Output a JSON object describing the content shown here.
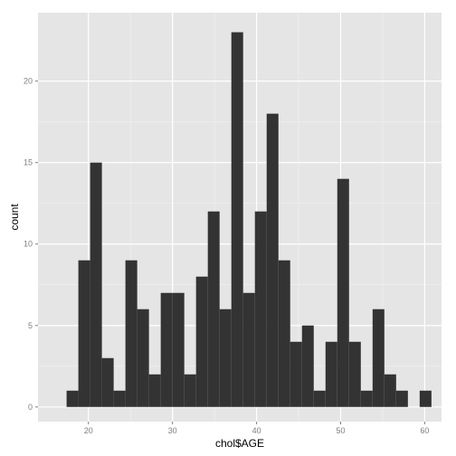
{
  "chart_data": {
    "type": "bar",
    "xlabel": "chol$AGE",
    "ylabel": "count",
    "xlim": [
      14,
      62
    ],
    "ylim": [
      -0.9,
      24.2
    ],
    "x_ticks": [
      20,
      30,
      40,
      50,
      60
    ],
    "y_ticks": [
      0,
      5,
      10,
      15,
      20
    ],
    "bins": [
      {
        "x0": 17.4,
        "x1": 18.8,
        "count": 1
      },
      {
        "x0": 18.8,
        "x1": 20.2,
        "count": 9
      },
      {
        "x0": 20.2,
        "x1": 21.6,
        "count": 15
      },
      {
        "x0": 21.6,
        "x1": 23.0,
        "count": 3
      },
      {
        "x0": 23.0,
        "x1": 24.4,
        "count": 1
      },
      {
        "x0": 24.4,
        "x1": 25.8,
        "count": 9
      },
      {
        "x0": 25.8,
        "x1": 27.2,
        "count": 6
      },
      {
        "x0": 27.2,
        "x1": 28.6,
        "count": 2
      },
      {
        "x0": 28.6,
        "x1": 30.0,
        "count": 7
      },
      {
        "x0": 30.0,
        "x1": 31.4,
        "count": 7
      },
      {
        "x0": 31.4,
        "x1": 32.8,
        "count": 2
      },
      {
        "x0": 32.8,
        "x1": 34.2,
        "count": 8
      },
      {
        "x0": 34.2,
        "x1": 35.6,
        "count": 12
      },
      {
        "x0": 35.6,
        "x1": 37.0,
        "count": 6
      },
      {
        "x0": 37.0,
        "x1": 38.4,
        "count": 23
      },
      {
        "x0": 38.4,
        "x1": 39.8,
        "count": 7
      },
      {
        "x0": 39.8,
        "x1": 41.2,
        "count": 12
      },
      {
        "x0": 41.2,
        "x1": 42.6,
        "count": 18
      },
      {
        "x0": 42.6,
        "x1": 44.0,
        "count": 9
      },
      {
        "x0": 44.0,
        "x1": 45.4,
        "count": 4
      },
      {
        "x0": 45.4,
        "x1": 46.8,
        "count": 5
      },
      {
        "x0": 46.8,
        "x1": 48.2,
        "count": 1
      },
      {
        "x0": 48.2,
        "x1": 49.6,
        "count": 4
      },
      {
        "x0": 49.6,
        "x1": 51.0,
        "count": 14
      },
      {
        "x0": 51.0,
        "x1": 52.4,
        "count": 4
      },
      {
        "x0": 52.4,
        "x1": 53.8,
        "count": 1
      },
      {
        "x0": 53.8,
        "x1": 55.2,
        "count": 6
      },
      {
        "x0": 55.2,
        "x1": 56.6,
        "count": 2
      },
      {
        "x0": 56.6,
        "x1": 58.0,
        "count": 1
      },
      {
        "x0": 58.0,
        "x1": 59.4,
        "count": 0
      },
      {
        "x0": 59.4,
        "x1": 60.8,
        "count": 1
      }
    ],
    "grid": true,
    "colors": {
      "panel_background": "#e5e5e5",
      "grid_major": "#ffffff",
      "grid_minor": "#f2f2f2",
      "bar_fill": "#333333",
      "tick_label": "#7f7f7f",
      "axis_title": "#000000"
    }
  }
}
